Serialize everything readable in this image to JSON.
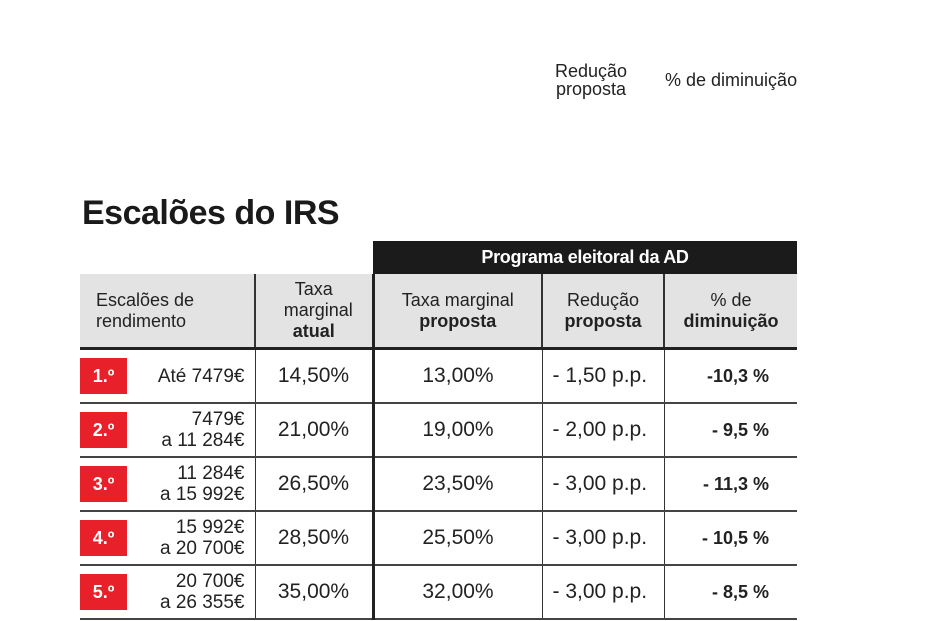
{
  "legend": {
    "reducao": "Redução proposta",
    "diminuicao": "% de diminuição"
  },
  "title": "Escalões do IRS",
  "banner": "Programa eleitoral da AD",
  "headers": {
    "escaloes": "Escalões de rendimento",
    "taxa_atual_1": "Taxa marginal",
    "taxa_atual_2": "atual",
    "taxa_prop_1": "Taxa marginal",
    "taxa_prop_2": "proposta",
    "red_1": "Redução",
    "red_2": "proposta",
    "dim_1": "% de",
    "dim_2": "diminuição"
  },
  "rows": [
    {
      "rank": "1.º",
      "range1": "Até 7479€",
      "range2": "",
      "atual": "14,50%",
      "proposta": "13,00%",
      "reducao": "- 1,50 p.p.",
      "diminuicao": "-10,3 %"
    },
    {
      "rank": "2.º",
      "range1": "7479€",
      "range2": "a 11 284€",
      "atual": "21,00%",
      "proposta": "19,00%",
      "reducao": "- 2,00 p.p.",
      "diminuicao": "- 9,5 %"
    },
    {
      "rank": "3.º",
      "range1": "11 284€",
      "range2": "a 15 992€",
      "atual": "26,50%",
      "proposta": "23,50%",
      "reducao": "- 3,00 p.p.",
      "diminuicao": "- 11,3 %"
    },
    {
      "rank": "4.º",
      "range1": "15 992€",
      "range2": "a 20 700€",
      "atual": "28,50%",
      "proposta": "25,50%",
      "reducao": "- 3,00 p.p.",
      "diminuicao": "- 10,5 %"
    },
    {
      "rank": "5.º",
      "range1": "20 700€",
      "range2": "a 26 355€",
      "atual": "35,00%",
      "proposta": "32,00%",
      "reducao": "- 3,00 p.p.",
      "diminuicao": "- 8,5 %"
    }
  ]
}
